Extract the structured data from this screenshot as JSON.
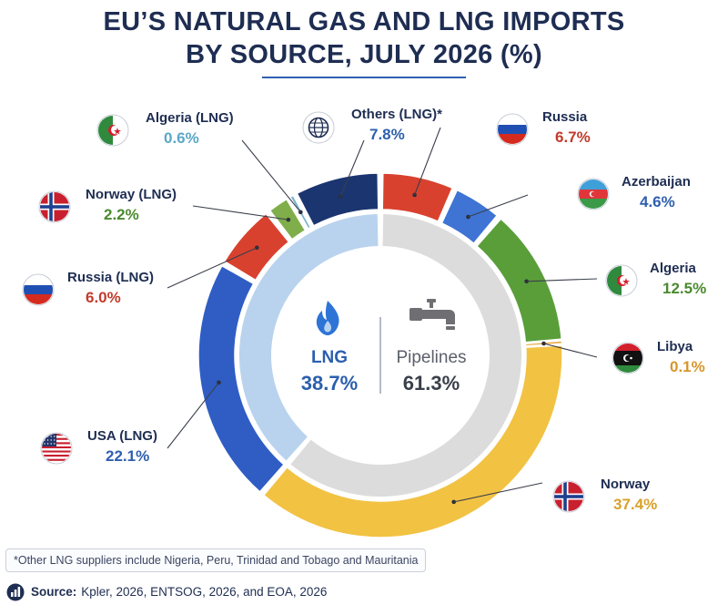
{
  "title_line1": "EU’S NATURAL GAS AND LNG IMPORTS",
  "title_line2": "BY SOURCE, JULY 2026 (%)",
  "footnote": "*Other LNG suppliers include Nigeria, Peru, Trinidad and Tobago and Mauritania",
  "source_label": "Source:",
  "source_text": "Kpler, 2026, ENTSOG, 2026, and EOA, 2026",
  "chart_data": {
    "type": "pie",
    "style": "double-donut",
    "title": "EU’S NATURAL GAS AND LNG IMPORTS BY SOURCE, JULY 2026 (%)",
    "inner_ring": [
      {
        "name": "LNG",
        "value": 38.7,
        "label": "38.7%",
        "color": "#b9d3ee",
        "icon": "flame-icon"
      },
      {
        "name": "Pipelines",
        "value": 61.3,
        "label": "61.3%",
        "color": "#dcdcdc",
        "icon": "pipeline-icon"
      }
    ],
    "outer_ring": [
      {
        "name": "Russia",
        "value": 6.7,
        "label": "6.7%",
        "group": "Pipelines",
        "color": "#d9412f",
        "value_color": "#c23b2b",
        "flag": "flag-russia-icon"
      },
      {
        "name": "Azerbaijan",
        "value": 4.6,
        "label": "4.6%",
        "group": "Pipelines",
        "color": "#3f74d4",
        "value_color": "#2e5fae",
        "flag": "flag-azerbaijan-icon"
      },
      {
        "name": "Algeria",
        "value": 12.5,
        "label": "12.5%",
        "group": "Pipelines",
        "color": "#5a9e3a",
        "value_color": "#4a8a2e",
        "flag": "flag-algeria-icon"
      },
      {
        "name": "Libya",
        "value": 0.1,
        "label": "0.1%",
        "group": "Pipelines",
        "color": "#e8a437",
        "value_color": "#d7962a",
        "flag": "flag-libya-icon"
      },
      {
        "name": "Norway",
        "value": 37.4,
        "label": "37.4%",
        "group": "Pipelines",
        "color": "#f2c243",
        "value_color": "#d9a12a",
        "flag": "flag-norway-icon"
      },
      {
        "name": "USA (LNG)",
        "value": 22.1,
        "label": "22.1%",
        "group": "LNG",
        "color": "#2f5dc4",
        "value_color": "#2e5fae",
        "flag": "flag-usa-icon"
      },
      {
        "name": "Russia (LNG)",
        "value": 6.0,
        "label": "6.0%",
        "group": "LNG",
        "color": "#d9412f",
        "value_color": "#c23b2b",
        "flag": "flag-russia-icon"
      },
      {
        "name": "Norway (LNG)",
        "value": 2.2,
        "label": "2.2%",
        "group": "LNG",
        "color": "#7fae4a",
        "value_color": "#4a8a2e",
        "flag": "flag-norway-icon"
      },
      {
        "name": "Algeria (LNG)",
        "value": 0.6,
        "label": "0.6%",
        "group": "LNG",
        "color": "#78b3cf",
        "value_color": "#5aa7c7",
        "flag": "flag-algeria-icon"
      },
      {
        "name": "Others (LNG)*",
        "value": 7.8,
        "label": "7.8%",
        "group": "LNG",
        "color": "#1b3570",
        "value_color": "#2e5fae",
        "flag": "globe-icon"
      }
    ]
  }
}
